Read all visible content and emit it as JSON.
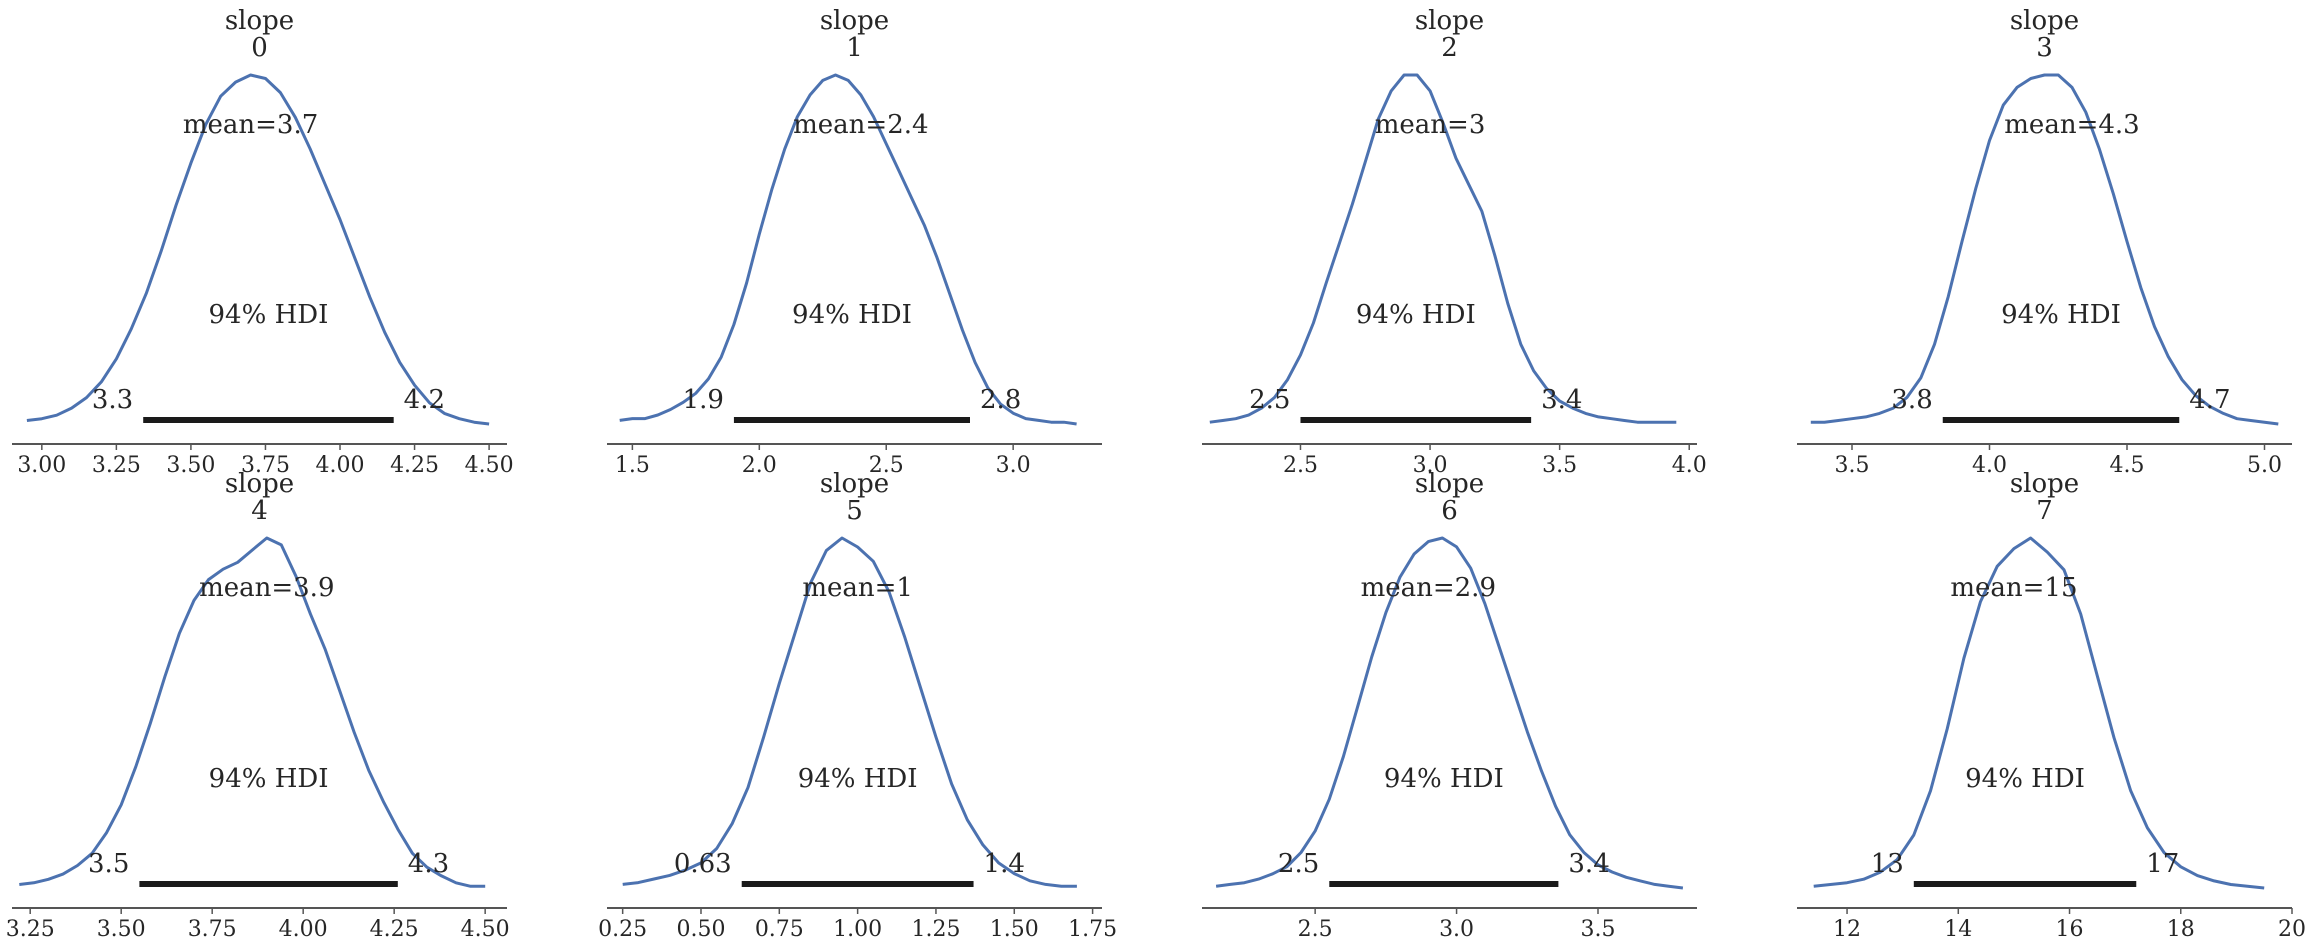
{
  "chart_data": [
    {
      "type": "density",
      "title": [
        "slope",
        "0"
      ],
      "mean_label": "mean=3.7",
      "mean": 3.7,
      "hdi_label": "94% HDI",
      "hdi": [
        3.34,
        4.18
      ],
      "hdi_labels": [
        "3.3",
        "4.2"
      ],
      "x": [
        2.95,
        3.0,
        3.05,
        3.1,
        3.15,
        3.2,
        3.25,
        3.3,
        3.35,
        3.4,
        3.45,
        3.5,
        3.55,
        3.6,
        3.65,
        3.7,
        3.75,
        3.8,
        3.85,
        3.9,
        3.95,
        4.0,
        4.05,
        4.1,
        4.15,
        4.2,
        4.25,
        4.3,
        4.35,
        4.4,
        4.45,
        4.5
      ],
      "density": [
        0.02,
        0.03,
        0.05,
        0.09,
        0.15,
        0.24,
        0.37,
        0.54,
        0.74,
        0.98,
        1.24,
        1.48,
        1.7,
        1.86,
        1.94,
        1.98,
        1.96,
        1.88,
        1.74,
        1.56,
        1.36,
        1.16,
        0.94,
        0.72,
        0.52,
        0.35,
        0.22,
        0.12,
        0.06,
        0.03,
        0.01,
        0.0
      ],
      "xlim": [
        2.9,
        4.56
      ],
      "xticks": [
        3.0,
        3.25,
        3.5,
        3.75,
        4.0,
        4.25,
        4.5
      ],
      "xtick_labels": [
        "3.00",
        "3.25",
        "3.50",
        "3.75",
        "4.00",
        "4.25",
        "4.50"
      ]
    },
    {
      "type": "density",
      "title": [
        "slope",
        "1"
      ],
      "mean_label": "mean=2.4",
      "mean": 2.4,
      "hdi_label": "94% HDI",
      "hdi": [
        1.9,
        2.83
      ],
      "hdi_labels": [
        "1.9",
        "2.8"
      ],
      "x": [
        1.45,
        1.5,
        1.55,
        1.6,
        1.65,
        1.7,
        1.75,
        1.8,
        1.85,
        1.9,
        1.95,
        2.0,
        2.05,
        2.1,
        2.15,
        2.2,
        2.25,
        2.3,
        2.35,
        2.4,
        2.45,
        2.5,
        2.55,
        2.6,
        2.65,
        2.7,
        2.75,
        2.8,
        2.85,
        2.9,
        2.95,
        3.0,
        3.05,
        3.1,
        3.15,
        3.2,
        3.25
      ],
      "density": [
        0.02,
        0.03,
        0.03,
        0.05,
        0.08,
        0.12,
        0.17,
        0.25,
        0.37,
        0.55,
        0.78,
        1.05,
        1.3,
        1.52,
        1.7,
        1.82,
        1.9,
        1.93,
        1.9,
        1.82,
        1.7,
        1.55,
        1.4,
        1.25,
        1.1,
        0.92,
        0.72,
        0.52,
        0.34,
        0.2,
        0.11,
        0.06,
        0.03,
        0.02,
        0.01,
        0.01,
        0.0
      ],
      "xlim": [
        1.4,
        3.35
      ],
      "xticks": [
        1.5,
        2.0,
        2.5,
        3.0
      ],
      "xtick_labels": [
        "1.5",
        "2.0",
        "2.5",
        "3.0"
      ]
    },
    {
      "type": "density",
      "title": [
        "slope",
        "2"
      ],
      "mean_label": "mean=3",
      "mean": 3.0,
      "hdi_label": "94% HDI",
      "hdi": [
        2.5,
        3.39
      ],
      "hdi_labels": [
        "2.5",
        "3.4"
      ],
      "x": [
        2.15,
        2.2,
        2.25,
        2.3,
        2.35,
        2.4,
        2.45,
        2.5,
        2.55,
        2.6,
        2.65,
        2.7,
        2.75,
        2.8,
        2.85,
        2.9,
        2.95,
        3.0,
        3.05,
        3.1,
        3.15,
        3.2,
        3.25,
        3.3,
        3.35,
        3.4,
        3.45,
        3.5,
        3.55,
        3.6,
        3.65,
        3.7,
        3.75,
        3.8,
        3.85,
        3.9,
        3.95
      ],
      "density": [
        0.01,
        0.02,
        0.03,
        0.05,
        0.09,
        0.15,
        0.25,
        0.39,
        0.57,
        0.8,
        1.02,
        1.24,
        1.48,
        1.72,
        1.88,
        1.97,
        1.97,
        1.88,
        1.7,
        1.5,
        1.35,
        1.2,
        0.95,
        0.68,
        0.45,
        0.3,
        0.2,
        0.13,
        0.09,
        0.06,
        0.04,
        0.03,
        0.02,
        0.01,
        0.01,
        0.01,
        0.01
      ],
      "xlim": [
        2.12,
        4.03
      ],
      "xticks": [
        2.5,
        3.0,
        3.5,
        4.0
      ],
      "xtick_labels": [
        "2.5",
        "3.0",
        "3.5",
        "4.0"
      ]
    },
    {
      "type": "density",
      "title": [
        "slope",
        "3"
      ],
      "mean_label": "mean=4.3",
      "mean": 4.3,
      "hdi_label": "94% HDI",
      "hdi": [
        3.83,
        4.69
      ],
      "hdi_labels": [
        "3.8",
        "4.7"
      ],
      "x": [
        3.35,
        3.4,
        3.45,
        3.5,
        3.55,
        3.6,
        3.65,
        3.7,
        3.75,
        3.8,
        3.85,
        3.9,
        3.95,
        4.0,
        4.05,
        4.1,
        4.15,
        4.2,
        4.25,
        4.3,
        4.35,
        4.4,
        4.45,
        4.5,
        4.55,
        4.6,
        4.65,
        4.7,
        4.75,
        4.8,
        4.85,
        4.9,
        4.95,
        5.0,
        5.05
      ],
      "density": [
        0.01,
        0.01,
        0.02,
        0.03,
        0.04,
        0.06,
        0.09,
        0.15,
        0.26,
        0.45,
        0.72,
        1.03,
        1.33,
        1.6,
        1.8,
        1.9,
        1.95,
        1.97,
        1.97,
        1.9,
        1.76,
        1.55,
        1.3,
        1.03,
        0.77,
        0.55,
        0.38,
        0.25,
        0.16,
        0.1,
        0.06,
        0.03,
        0.02,
        0.01,
        0.0
      ],
      "xlim": [
        3.3,
        5.1
      ],
      "xticks": [
        3.5,
        4.0,
        4.5,
        5.0
      ],
      "xtick_labels": [
        "3.5",
        "4.0",
        "4.5",
        "5.0"
      ]
    },
    {
      "type": "density",
      "title": [
        "slope",
        "4"
      ],
      "mean_label": "mean=3.9",
      "mean": 3.9,
      "hdi_label": "94% HDI",
      "hdi": [
        3.55,
        4.26
      ],
      "hdi_labels": [
        "3.5",
        "4.3"
      ],
      "x": [
        3.22,
        3.26,
        3.3,
        3.34,
        3.38,
        3.42,
        3.46,
        3.5,
        3.54,
        3.58,
        3.62,
        3.66,
        3.7,
        3.74,
        3.78,
        3.82,
        3.86,
        3.9,
        3.94,
        3.98,
        4.02,
        4.06,
        4.1,
        4.14,
        4.18,
        4.22,
        4.26,
        4.3,
        4.34,
        4.38,
        4.42,
        4.46,
        4.5
      ],
      "density": [
        0.02,
        0.03,
        0.05,
        0.08,
        0.13,
        0.2,
        0.32,
        0.48,
        0.7,
        0.95,
        1.22,
        1.47,
        1.66,
        1.78,
        1.84,
        1.88,
        1.95,
        2.02,
        1.98,
        1.8,
        1.58,
        1.38,
        1.14,
        0.9,
        0.68,
        0.5,
        0.34,
        0.2,
        0.12,
        0.07,
        0.03,
        0.01,
        0.01
      ],
      "xlim": [
        3.2,
        4.56
      ],
      "xticks": [
        3.25,
        3.5,
        3.75,
        4.0,
        4.25,
        4.5
      ],
      "xtick_labels": [
        "3.25",
        "3.50",
        "3.75",
        "4.00",
        "4.25",
        "4.50"
      ]
    },
    {
      "type": "density",
      "title": [
        "slope",
        "5"
      ],
      "mean_label": "mean=1",
      "mean": 1.0,
      "hdi_label": "94% HDI",
      "hdi": [
        0.63,
        1.37
      ],
      "hdi_labels": [
        "0.63",
        "1.4"
      ],
      "x": [
        0.25,
        0.3,
        0.35,
        0.4,
        0.45,
        0.5,
        0.55,
        0.6,
        0.65,
        0.7,
        0.75,
        0.8,
        0.85,
        0.9,
        0.95,
        1.0,
        1.05,
        1.1,
        1.15,
        1.2,
        1.25,
        1.3,
        1.35,
        1.4,
        1.45,
        1.5,
        1.55,
        1.6,
        1.65,
        1.7
      ],
      "density": [
        0.02,
        0.03,
        0.05,
        0.07,
        0.1,
        0.14,
        0.22,
        0.36,
        0.56,
        0.84,
        1.14,
        1.42,
        1.7,
        1.88,
        1.95,
        1.9,
        1.82,
        1.65,
        1.4,
        1.12,
        0.84,
        0.58,
        0.38,
        0.24,
        0.14,
        0.08,
        0.04,
        0.02,
        0.01,
        0.01
      ],
      "xlim": [
        0.2,
        1.78
      ],
      "xticks": [
        0.25,
        0.5,
        0.75,
        1.0,
        1.25,
        1.5,
        1.75
      ],
      "xtick_labels": [
        "0.25",
        "0.50",
        "0.75",
        "1.00",
        "1.25",
        "1.50",
        "1.75"
      ]
    },
    {
      "type": "density",
      "title": [
        "slope",
        "6"
      ],
      "mean_label": "mean=2.9",
      "mean": 2.9,
      "hdi_label": "94% HDI",
      "hdi": [
        2.55,
        3.36
      ],
      "hdi_labels": [
        "2.5",
        "3.4"
      ],
      "x": [
        2.15,
        2.2,
        2.25,
        2.3,
        2.35,
        2.4,
        2.45,
        2.5,
        2.55,
        2.6,
        2.65,
        2.7,
        2.75,
        2.8,
        2.85,
        2.9,
        2.95,
        3.0,
        3.05,
        3.1,
        3.15,
        3.2,
        3.25,
        3.3,
        3.35,
        3.4,
        3.45,
        3.5,
        3.55,
        3.6,
        3.65,
        3.7,
        3.75,
        3.8
      ],
      "density": [
        0.01,
        0.02,
        0.03,
        0.05,
        0.08,
        0.12,
        0.2,
        0.32,
        0.5,
        0.74,
        1.02,
        1.3,
        1.55,
        1.75,
        1.88,
        1.95,
        1.97,
        1.92,
        1.8,
        1.6,
        1.36,
        1.12,
        0.88,
        0.66,
        0.46,
        0.3,
        0.2,
        0.13,
        0.09,
        0.06,
        0.04,
        0.02,
        0.01,
        0.0
      ],
      "xlim": [
        2.1,
        3.85
      ],
      "xticks": [
        2.5,
        3.0,
        3.5
      ],
      "xtick_labels": [
        "2.5",
        "3.0",
        "3.5"
      ]
    },
    {
      "type": "density",
      "title": [
        "slope",
        "7"
      ],
      "mean_label": "mean=15",
      "mean": 15.0,
      "hdi_label": "94% HDI",
      "hdi": [
        13.2,
        17.2
      ],
      "hdi_labels": [
        "13",
        "17"
      ],
      "x": [
        11.4,
        11.7,
        12.0,
        12.3,
        12.6,
        12.9,
        13.2,
        13.5,
        13.8,
        14.1,
        14.4,
        14.7,
        15.0,
        15.3,
        15.6,
        15.9,
        16.2,
        16.5,
        16.8,
        17.1,
        17.4,
        17.7,
        18.0,
        18.3,
        18.6,
        18.9,
        19.2,
        19.5
      ],
      "density": [
        0.01,
        0.02,
        0.03,
        0.05,
        0.09,
        0.16,
        0.3,
        0.55,
        0.9,
        1.3,
        1.62,
        1.82,
        1.92,
        1.98,
        1.9,
        1.8,
        1.55,
        1.2,
        0.85,
        0.55,
        0.34,
        0.2,
        0.12,
        0.07,
        0.04,
        0.02,
        0.01,
        0.0
      ],
      "xlim": [
        11.1,
        20.0
      ],
      "xticks": [
        12,
        14,
        16,
        18,
        20
      ],
      "xtick_labels": [
        "12",
        "14",
        "16",
        "18",
        "20"
      ]
    }
  ]
}
